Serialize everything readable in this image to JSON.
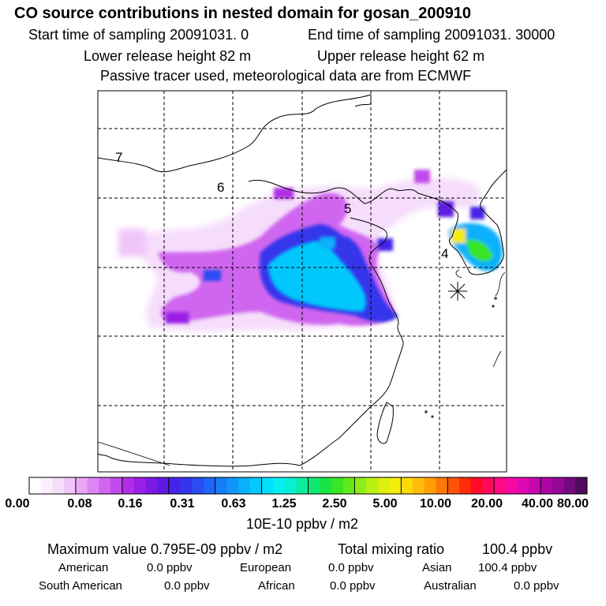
{
  "header": {
    "title": "CO  source contributions in nested domain for gosan_200910",
    "start_label": "Start time of sampling 20091031.     0",
    "end_label": "End time of sampling 20091031. 30000",
    "lower_release": "Lower release height   82 m",
    "upper_release": "Upper release height   62 m",
    "tracer_note": "Passive tracer used, meteorological data are from ECMWF"
  },
  "map": {
    "contour_labels": [
      "7",
      "6",
      "5",
      "4"
    ],
    "receptor_marker": "gosan-site-star-icon"
  },
  "colorbar": {
    "tick_labels": [
      "0.00",
      "0.08",
      "0.16",
      "0.31",
      "0.63",
      "1.25",
      "2.50",
      "5.00",
      "10.00",
      "20.00",
      "40.00",
      "80.00"
    ],
    "colors": [
      "#ffffff",
      "#fbeefd",
      "#f6ddfb",
      "#f0c5f9",
      "#e8a8f6",
      "#dd86f2",
      "#d066f0",
      "#c24aec",
      "#b12ee8",
      "#9a1fe6",
      "#7c1ae4",
      "#5e1ae2",
      "#4524e6",
      "#3436ec",
      "#2a4cf2",
      "#1e64f6",
      "#167cf8",
      "#1096fa",
      "#0ab0fc",
      "#06c8fc",
      "#04e0fa",
      "#06f0f0",
      "#08f0d0",
      "#0cec9e",
      "#10e870",
      "#18e444",
      "#38e424",
      "#64e81c",
      "#90ec18",
      "#b8f014",
      "#dcf010",
      "#f4ec0c",
      "#ffd80a",
      "#ffbc08",
      "#ff9c06",
      "#ff7806",
      "#ff5206",
      "#ff2c0a",
      "#ff0a2a",
      "#ff0a5a",
      "#ff0a86",
      "#f20aa2",
      "#de08b0",
      "#c806b0",
      "#ae06a6",
      "#920896",
      "#740a80",
      "#500a5c"
    ],
    "units": "10E-10 ppbv / m2"
  },
  "stats": {
    "max_label": "Maximum value  0.795E-09 ppbv / m2",
    "total_label": "Total mixing ratio",
    "total_value": "100.4 ppbv",
    "regions": [
      {
        "name": "American",
        "value": "0.0 ppbv"
      },
      {
        "name": "European",
        "value": "0.0 ppbv"
      },
      {
        "name": "Asian",
        "value": "100.4 ppbv"
      },
      {
        "name": "South American",
        "value": "0.0 ppbv"
      },
      {
        "name": "African",
        "value": "0.0 ppbv"
      },
      {
        "name": "Australian",
        "value": "0.0 ppbv"
      }
    ]
  }
}
